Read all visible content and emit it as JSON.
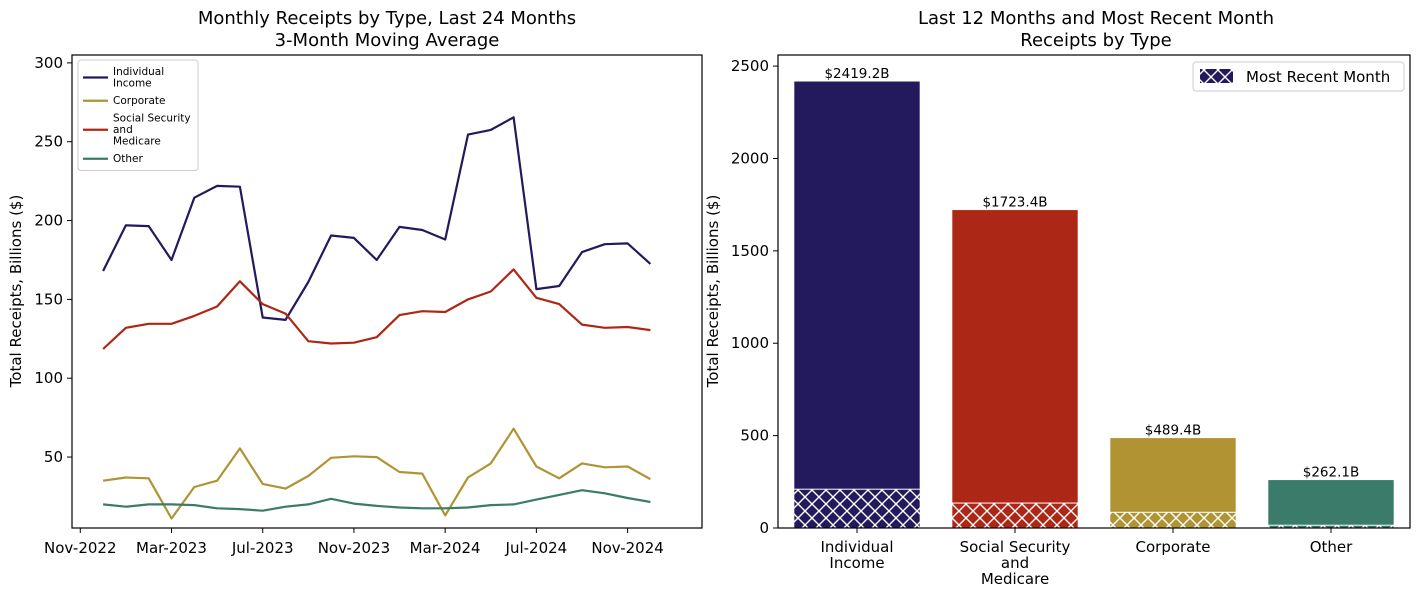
{
  "colors": {
    "individual": "#231a5e",
    "corporate": "#b09433",
    "social_security": "#ad2716",
    "other": "#3a7b6a"
  },
  "chart_data": [
    {
      "type": "line",
      "title": "Monthly Receipts by Type, Last 24 Months",
      "subtitle": "3-Month Moving Average",
      "xlabel": "",
      "ylabel": "Total Receipts, Billions ($)",
      "x": [
        "2022-12",
        "2023-01",
        "2023-02",
        "2023-03",
        "2023-04",
        "2023-05",
        "2023-06",
        "2023-07",
        "2023-08",
        "2023-09",
        "2023-10",
        "2023-11",
        "2023-12",
        "2024-01",
        "2024-02",
        "2024-03",
        "2024-04",
        "2024-05",
        "2024-06",
        "2024-07",
        "2024-08",
        "2024-09",
        "2024-10",
        "2024-11",
        "2024-12"
      ],
      "xticks": [
        "2022-11",
        "2023-03",
        "2023-07",
        "2023-11",
        "2024-03",
        "2024-07",
        "2024-11"
      ],
      "xtick_labels": [
        "Nov-2022",
        "Mar-2023",
        "Jul-2023",
        "Nov-2023",
        "Mar-2024",
        "Jul-2024",
        "Nov-2024"
      ],
      "yticks": [
        50,
        100,
        150,
        200,
        250,
        300
      ],
      "ylim": [
        5,
        305
      ],
      "legend_position": "top-left",
      "series": [
        {
          "name": "Individual Income",
          "legend_lines": [
            "Individual",
            "Income"
          ],
          "color_key": "individual",
          "values": [
            168,
            197,
            196.5,
            175,
            214.5,
            222,
            221.5,
            138.5,
            137,
            161,
            190.5,
            189,
            175,
            196,
            194,
            188,
            254.5,
            257.5,
            265.5,
            156.5,
            158.5,
            180,
            185,
            185.5,
            172.5
          ]
        },
        {
          "name": "Corporate",
          "legend_lines": [
            "Corporate"
          ],
          "color_key": "corporate",
          "values": [
            35,
            37,
            36.5,
            11,
            31,
            35,
            55.5,
            33,
            30,
            38,
            49.5,
            50.5,
            50,
            40.5,
            39.5,
            13,
            37,
            46,
            68,
            44,
            36.5,
            46,
            43.5,
            44,
            36
          ]
        },
        {
          "name": "Social Security and Medicare",
          "legend_lines": [
            "Social Security",
            "and",
            "Medicare"
          ],
          "color_key": "social_security",
          "values": [
            118.5,
            132,
            134.5,
            134.5,
            139.5,
            145.5,
            161.5,
            147,
            141,
            123.5,
            122,
            122.5,
            126,
            140,
            142.5,
            142,
            150,
            155,
            169,
            151,
            147,
            134,
            132,
            132.5,
            130.5
          ]
        },
        {
          "name": "Other",
          "legend_lines": [
            "Other"
          ],
          "color_key": "other",
          "values": [
            20,
            18.5,
            20,
            20,
            19.5,
            17.5,
            17,
            16,
            18.5,
            20,
            23.5,
            20.5,
            19,
            18,
            17.5,
            17.5,
            18,
            19.5,
            20,
            23,
            26,
            29,
            27,
            24,
            21.5
          ]
        }
      ]
    },
    {
      "type": "bar",
      "title": "Last 12 Months and Most Recent Month",
      "subtitle": "Receipts by Type",
      "xlabel": "",
      "ylabel": "Total Receipts, Billions ($)",
      "ylim": [
        0,
        2560
      ],
      "yticks": [
        0,
        500,
        1000,
        1500,
        2000,
        2500
      ],
      "legend_position": "top-right",
      "legend_label": "Most Recent Month",
      "categories": [
        {
          "lines": [
            "Individual",
            "Income"
          ],
          "color_key": "individual"
        },
        {
          "lines": [
            "Social Security",
            "and",
            "Medicare"
          ],
          "color_key": "social_security"
        },
        {
          "lines": [
            "Corporate"
          ],
          "color_key": "corporate"
        },
        {
          "lines": [
            "Other"
          ],
          "color_key": "other"
        }
      ],
      "series": [
        {
          "name": "Last 12 Months",
          "values": [
            2419.2,
            1723.4,
            489.4,
            262.1
          ],
          "labels": [
            "$2419.2B",
            "$1723.4B",
            "$489.4B",
            "$262.1B"
          ]
        },
        {
          "name": "Most Recent Month",
          "values": [
            210,
            135,
            85,
            15
          ]
        }
      ]
    }
  ]
}
